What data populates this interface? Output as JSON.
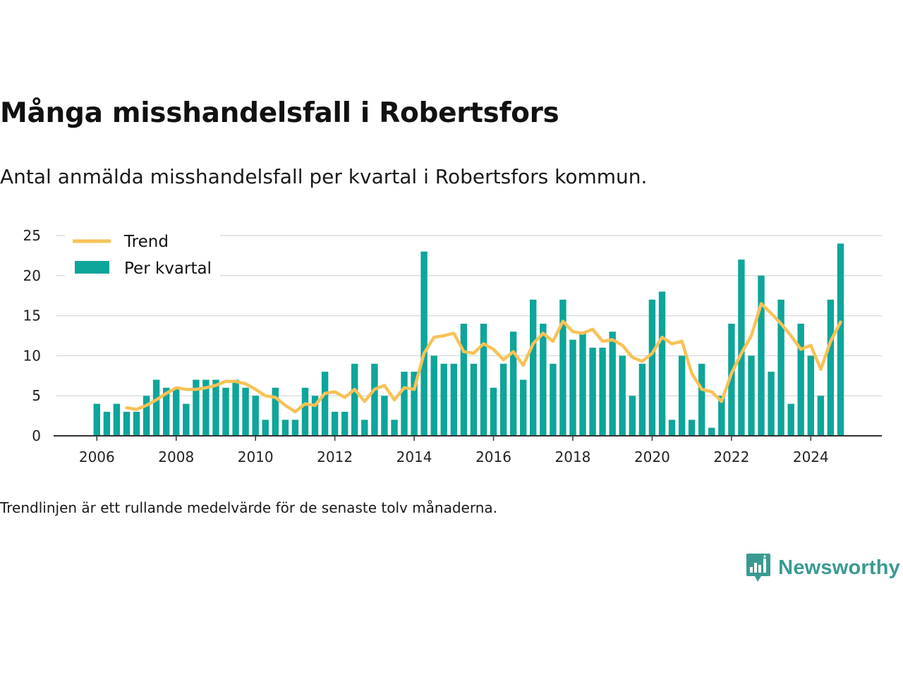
{
  "title": "Många misshandelsfall i Robertsfors",
  "subtitle": "Antal anmälda misshandelsfall per kvartal i Robertsfors kommun.",
  "footnote": "Trendlinjen är ett rullande medelvärde för de senaste tolv månaderna.",
  "brand": {
    "name": "Newsworthy",
    "icon": "newsworthy-logo-icon",
    "color": "#3a9a92"
  },
  "colors": {
    "bars": "#0ea59a",
    "trend": "#f8c257",
    "grid": "#dddddd",
    "axis": "#333333"
  },
  "chart_data": {
    "type": "bar",
    "ylim": [
      0,
      25
    ],
    "yticks": [
      0,
      5,
      10,
      15,
      20,
      25
    ],
    "xticks": [
      2006,
      2008,
      2010,
      2012,
      2014,
      2016,
      2018,
      2020,
      2022,
      2024
    ],
    "xlim": [
      2005.0,
      2025.0
    ],
    "grid": true,
    "legend_position": "top-left",
    "legend": [
      "Trend",
      "Per kvartal"
    ],
    "series": [
      {
        "name": "Per kvartal",
        "type": "bar",
        "x_start": 2006,
        "x_step": 0.25,
        "values": [
          4,
          3,
          4,
          3,
          3,
          5,
          7,
          6,
          6,
          4,
          7,
          7,
          7,
          6,
          7,
          6,
          5,
          2,
          6,
          2,
          2,
          6,
          5,
          8,
          3,
          3,
          9,
          2,
          9,
          5,
          2,
          8,
          8,
          23,
          10,
          9,
          9,
          14,
          9,
          14,
          6,
          9,
          13,
          7,
          17,
          14,
          9,
          17,
          12,
          13,
          11,
          11,
          13,
          10,
          5,
          9,
          17,
          18,
          2,
          10,
          2,
          9,
          1,
          5,
          14,
          22,
          10,
          20,
          8,
          17,
          4,
          14,
          10,
          5,
          17,
          24
        ]
      },
      {
        "name": "Trend",
        "type": "line",
        "x_start": 2006.75,
        "x_step": 0.25,
        "values": [
          3.5,
          3.3,
          3.8,
          4.5,
          5.3,
          6.0,
          5.8,
          5.8,
          6.0,
          6.3,
          6.8,
          6.8,
          6.5,
          5.8,
          5.0,
          4.8,
          3.8,
          3.0,
          4.0,
          3.8,
          5.3,
          5.5,
          4.8,
          5.8,
          4.3,
          5.8,
          6.3,
          4.5,
          6.0,
          5.8,
          10.3,
          12.3,
          12.5,
          12.8,
          10.5,
          10.3,
          11.5,
          10.8,
          9.5,
          10.5,
          8.8,
          11.5,
          12.8,
          11.8,
          14.3,
          13.0,
          12.8,
          13.3,
          11.8,
          12.0,
          11.3,
          9.8,
          9.3,
          10.3,
          12.3,
          11.5,
          11.8,
          7.8,
          5.8,
          5.5,
          4.3,
          7.8,
          10.3,
          12.5,
          16.5,
          15.3,
          14.0,
          12.5,
          10.8,
          11.3,
          8.3,
          11.8,
          14.2
        ]
      }
    ]
  }
}
